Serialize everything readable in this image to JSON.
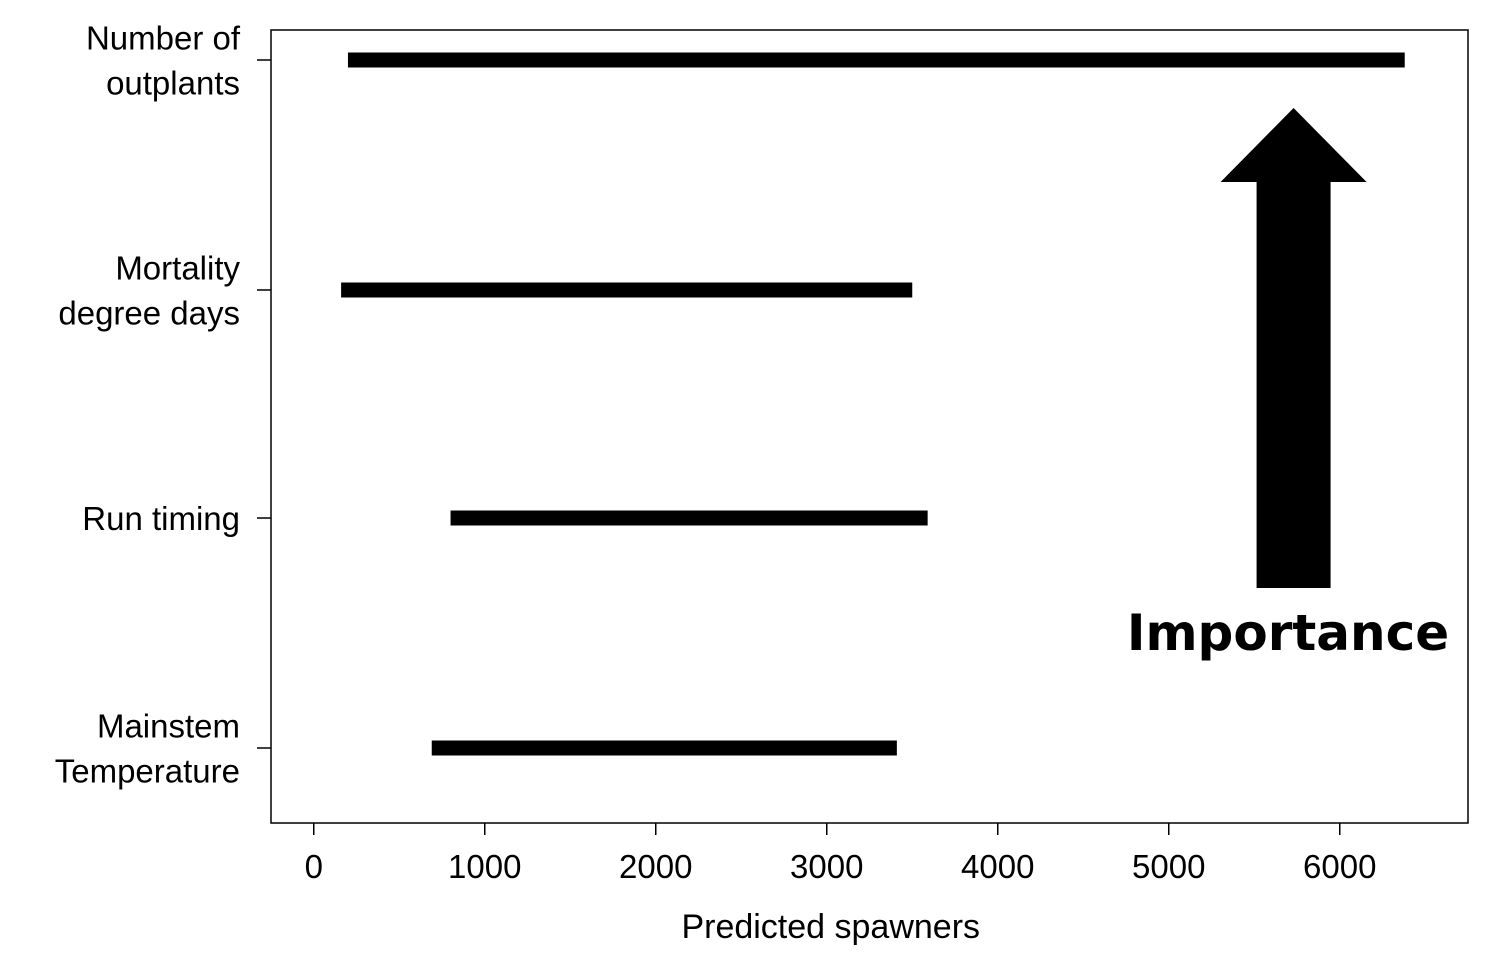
{
  "chart_data": {
    "type": "bar",
    "orientation": "horizontal-range",
    "title": "",
    "xlabel": "Predicted spawners",
    "ylabel": "",
    "xlim": [
      -250,
      6750
    ],
    "xticks": [
      0,
      1000,
      2000,
      3000,
      4000,
      5000,
      6000
    ],
    "grid": false,
    "categories": [
      {
        "lines": [
          "Number of",
          "outplants"
        ],
        "low": 200,
        "high": 6380
      },
      {
        "lines": [
          "Mortality",
          "degree days"
        ],
        "low": 160,
        "high": 3500
      },
      {
        "lines": [
          "Run timing"
        ],
        "low": 800,
        "high": 3590
      },
      {
        "lines": [
          "Mainstem",
          "Temperature"
        ],
        "low": 690,
        "high": 3410
      }
    ],
    "annotation": {
      "text": "Importance",
      "arrow_x": 5730,
      "direction": "up"
    },
    "colors": {
      "bars": "#000000",
      "axes": "#000000",
      "background": "#ffffff"
    }
  }
}
